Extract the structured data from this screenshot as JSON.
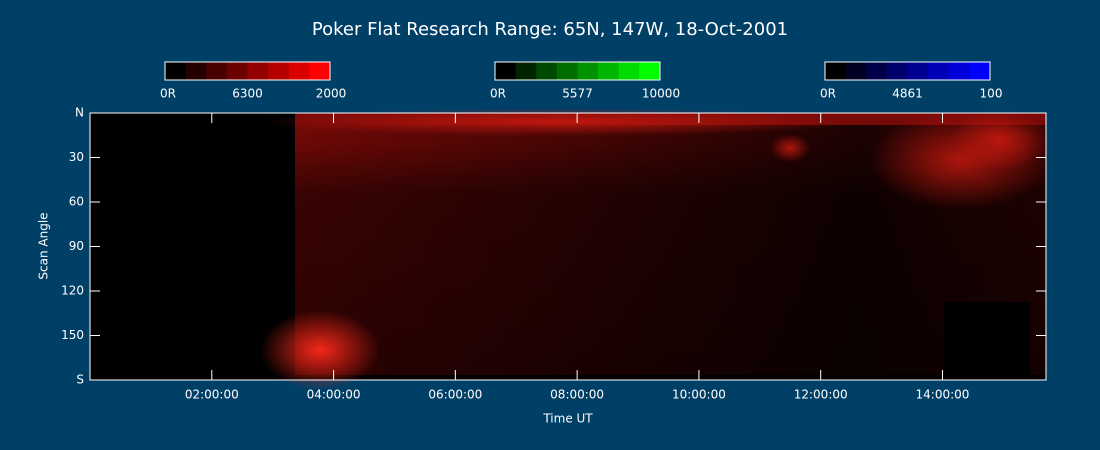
{
  "chart_data": {
    "type": "keogram",
    "title": "Poker Flat Research Range: 65N, 147W, 18-Oct-2001",
    "xlabel": "Time UT",
    "ylabel": "Scan Angle",
    "xlim": [
      0,
      15.7
    ],
    "xticks": [
      {
        "value": 2,
        "label": "02:00:00"
      },
      {
        "value": 4,
        "label": "04:00:00"
      },
      {
        "value": 6,
        "label": "06:00:00"
      },
      {
        "value": 8,
        "label": "08:00:00"
      },
      {
        "value": 10,
        "label": "10:00:00"
      },
      {
        "value": 12,
        "label": "12:00:00"
      },
      {
        "value": 14,
        "label": "14:00:00"
      }
    ],
    "ylim": [
      0,
      180
    ],
    "yticks": [
      {
        "value": 0,
        "label": "N"
      },
      30,
      60,
      90,
      120,
      150,
      {
        "value": 180,
        "label": "S"
      }
    ],
    "colorbars": [
      {
        "color": "#ff0000",
        "labels": [
          "0R",
          "6300",
          "2000"
        ]
      },
      {
        "color": "#00ff00",
        "labels": [
          "0R",
          "5577",
          "10000"
        ]
      },
      {
        "color": "#0000ff",
        "labels": [
          "0R",
          "4861",
          "100"
        ]
      }
    ]
  }
}
